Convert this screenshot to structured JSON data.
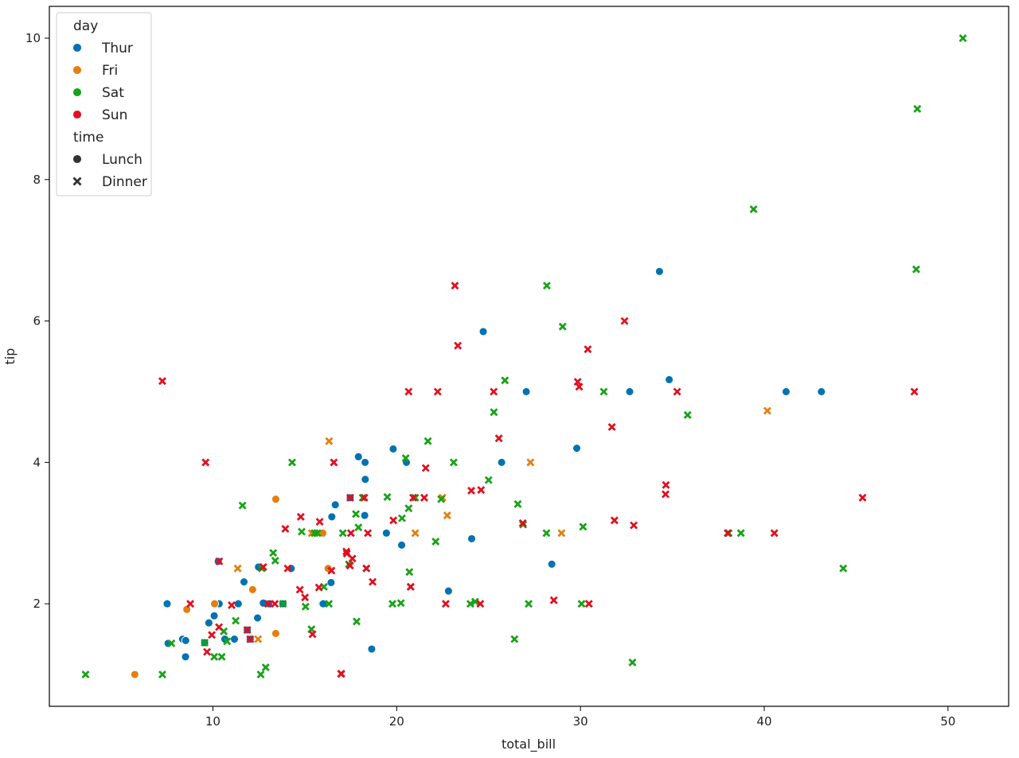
{
  "chart_data": {
    "type": "scatter",
    "xlabel": "total_bill",
    "ylabel": "tip",
    "xlim": [
      1.1,
      53.3
    ],
    "ylim": [
      0.55,
      10.45
    ],
    "xticks": [
      10,
      20,
      30,
      40,
      50
    ],
    "yticks": [
      2,
      4,
      6,
      8,
      10
    ],
    "grid": false,
    "legend": {
      "placement": "top-left",
      "hue_title": "day",
      "style_title": "time",
      "hue_entries": [
        {
          "label": "Thur",
          "color": "#1f77b4"
        },
        {
          "label": "Fri",
          "color": "#ff7f0e"
        },
        {
          "label": "Sat",
          "color": "#2ca02c"
        },
        {
          "label": "Sun",
          "color": "#d62728"
        }
      ],
      "style_entries": [
        {
          "label": "Lunch",
          "marker": "circle"
        },
        {
          "label": "Dinner",
          "marker": "x"
        }
      ]
    },
    "colors": {
      "Thur": "#0072B2",
      "Fri": "#E67E0E",
      "Sat": "#17A317",
      "Sun": "#E01020"
    },
    "series": [
      {
        "day": "Thur",
        "time": "Lunch",
        "points": [
          [
            7.51,
            2.0
          ],
          [
            7.56,
            1.44
          ],
          [
            8.35,
            1.5
          ],
          [
            8.51,
            1.25
          ],
          [
            8.52,
            1.48
          ],
          [
            9.78,
            1.73
          ],
          [
            10.07,
            1.83
          ],
          [
            10.34,
            2.0
          ],
          [
            10.65,
            1.5
          ],
          [
            11.17,
            1.5
          ],
          [
            11.38,
            2.0
          ],
          [
            11.87,
            1.63
          ],
          [
            12.03,
            1.5
          ],
          [
            12.43,
            1.8
          ],
          [
            12.48,
            2.52
          ],
          [
            12.9,
            2.0
          ],
          [
            13.0,
            2.0
          ],
          [
            13.03,
            2.0
          ],
          [
            13.42,
            1.58
          ],
          [
            14.26,
            2.5
          ],
          [
            15.95,
            2.0
          ],
          [
            16.47,
            3.23
          ],
          [
            16.66,
            3.4
          ],
          [
            16.0,
            2.0
          ],
          [
            16.29,
            2.5
          ],
          [
            16.43,
            2.3
          ],
          [
            17.92,
            4.08
          ],
          [
            18.29,
            3.76
          ],
          [
            18.28,
            4.0
          ],
          [
            18.64,
            1.36
          ],
          [
            19.44,
            3.0
          ],
          [
            19.81,
            4.19
          ],
          [
            20.27,
            2.83
          ],
          [
            20.53,
            4.0
          ],
          [
            22.82,
            2.18
          ],
          [
            24.08,
            2.92
          ],
          [
            24.71,
            5.85
          ],
          [
            25.71,
            4.0
          ],
          [
            27.05,
            5.0
          ],
          [
            28.44,
            2.56
          ],
          [
            29.8,
            4.2
          ],
          [
            32.68,
            5.0
          ],
          [
            34.83,
            5.17
          ],
          [
            41.19,
            5.0
          ],
          [
            43.11,
            5.0
          ],
          [
            34.3,
            6.7
          ],
          [
            17.47,
            3.5
          ],
          [
            13.81,
            2.0
          ],
          [
            11.69,
            2.31
          ],
          [
            10.29,
            2.6
          ],
          [
            12.74,
            2.01
          ],
          [
            18.26,
            3.25
          ],
          [
            9.55,
            1.45
          ]
        ]
      },
      {
        "day": "Fri",
        "time": "Lunch",
        "points": [
          [
            5.75,
            1.0
          ],
          [
            8.58,
            1.92
          ],
          [
            10.09,
            2.0
          ],
          [
            12.16,
            2.2
          ],
          [
            13.42,
            3.48
          ],
          [
            13.42,
            1.58
          ],
          [
            15.98,
            3.0
          ],
          [
            16.27,
            2.5
          ]
        ]
      },
      {
        "day": "Fri",
        "time": "Dinner",
        "points": [
          [
            12.46,
            1.5
          ],
          [
            11.35,
            2.5
          ],
          [
            16.32,
            4.3
          ],
          [
            22.75,
            3.25
          ],
          [
            40.17,
            4.73
          ],
          [
            27.28,
            4.0
          ],
          [
            12.03,
            1.5
          ],
          [
            21.01,
            3.0
          ],
          [
            15.38,
            3.0
          ],
          [
            28.97,
            3.0
          ],
          [
            22.49,
            3.5
          ]
        ]
      },
      {
        "day": "Sat",
        "time": "Dinner",
        "points": [
          [
            3.07,
            1.0
          ],
          [
            7.25,
            1.0
          ],
          [
            7.74,
            1.44
          ],
          [
            9.55,
            1.45
          ],
          [
            10.07,
            1.25
          ],
          [
            10.59,
            1.61
          ],
          [
            10.48,
            1.25
          ],
          [
            11.24,
            1.76
          ],
          [
            11.61,
            3.39
          ],
          [
            12.6,
            1.0
          ],
          [
            12.87,
            1.1
          ],
          [
            13.28,
            2.72
          ],
          [
            13.81,
            2.0
          ],
          [
            14.31,
            4.0
          ],
          [
            15.04,
            1.96
          ],
          [
            15.36,
            1.64
          ],
          [
            15.69,
            3.0
          ],
          [
            16.04,
            2.24
          ],
          [
            17.07,
            3.0
          ],
          [
            17.78,
            3.27
          ],
          [
            17.82,
            1.75
          ],
          [
            18.15,
            3.5
          ],
          [
            18.35,
            2.5
          ],
          [
            19.49,
            3.51
          ],
          [
            20.29,
            3.21
          ],
          [
            20.49,
            4.06
          ],
          [
            20.69,
            2.45
          ],
          [
            21.01,
            3.5
          ],
          [
            22.42,
            3.48
          ],
          [
            23.1,
            4.0
          ],
          [
            24.01,
            2.0
          ],
          [
            25.0,
            3.75
          ],
          [
            26.41,
            1.5
          ],
          [
            28.15,
            3.0
          ],
          [
            28.17,
            6.5
          ],
          [
            29.03,
            5.92
          ],
          [
            30.06,
            2.0
          ],
          [
            31.27,
            5.0
          ],
          [
            32.83,
            1.17
          ],
          [
            35.83,
            4.67
          ],
          [
            38.73,
            3.0
          ],
          [
            39.42,
            7.58
          ],
          [
            44.3,
            2.5
          ],
          [
            48.27,
            6.73
          ],
          [
            48.33,
            9.0
          ],
          [
            50.81,
            10.0
          ],
          [
            20.65,
            3.35
          ],
          [
            21.7,
            4.3
          ],
          [
            25.29,
            4.71
          ],
          [
            26.88,
            3.12
          ],
          [
            10.77,
            1.47
          ],
          [
            15.53,
            3.0
          ],
          [
            13.39,
            2.61
          ],
          [
            20.76,
            2.24
          ],
          [
            16.31,
            2.0
          ],
          [
            17.92,
            3.08
          ],
          [
            24.27,
            2.03
          ],
          [
            12.66,
            2.5
          ],
          [
            26.59,
            3.41
          ],
          [
            38.07,
            3.0
          ],
          [
            19.77,
            2.0
          ],
          [
            20.23,
            2.01
          ],
          [
            25.89,
            5.16
          ],
          [
            30.14,
            3.09
          ],
          [
            22.12,
            2.88
          ],
          [
            27.18,
            2.0
          ],
          [
            14.83,
            3.02
          ],
          [
            17.4,
            2.56
          ]
        ]
      },
      {
        "day": "Sun",
        "time": "Dinner",
        "points": [
          [
            7.25,
            5.15
          ],
          [
            8.77,
            2.0
          ],
          [
            9.68,
            1.32
          ],
          [
            9.6,
            4.0
          ],
          [
            9.94,
            1.56
          ],
          [
            10.33,
            1.67
          ],
          [
            10.34,
            2.6
          ],
          [
            11.02,
            1.98
          ],
          [
            12.74,
            2.52
          ],
          [
            13.37,
            2.0
          ],
          [
            13.94,
            3.06
          ],
          [
            14.07,
            2.5
          ],
          [
            14.78,
            3.23
          ],
          [
            15.01,
            2.09
          ],
          [
            15.42,
            1.57
          ],
          [
            15.77,
            2.23
          ],
          [
            16.45,
            2.47
          ],
          [
            16.97,
            1.01
          ],
          [
            17.29,
            2.71
          ],
          [
            17.46,
            2.54
          ],
          [
            17.51,
            3.0
          ],
          [
            17.59,
            2.64
          ],
          [
            18.43,
            3.0
          ],
          [
            18.24,
            3.5
          ],
          [
            19.82,
            3.18
          ],
          [
            20.65,
            5.0
          ],
          [
            20.9,
            3.5
          ],
          [
            21.5,
            3.5
          ],
          [
            22.23,
            5.0
          ],
          [
            23.33,
            5.65
          ],
          [
            23.17,
            6.5
          ],
          [
            24.55,
            2.0
          ],
          [
            24.59,
            3.61
          ],
          [
            25.56,
            4.34
          ],
          [
            29.85,
            5.14
          ],
          [
            29.93,
            5.07
          ],
          [
            30.4,
            5.6
          ],
          [
            31.71,
            4.5
          ],
          [
            32.4,
            6.0
          ],
          [
            34.63,
            3.55
          ],
          [
            34.65,
            3.68
          ],
          [
            35.26,
            5.0
          ],
          [
            38.01,
            3.0
          ],
          [
            40.55,
            3.0
          ],
          [
            45.35,
            3.5
          ],
          [
            48.17,
            5.0
          ],
          [
            16.58,
            4.0
          ],
          [
            13.0,
            2.0
          ],
          [
            16.99,
            1.01
          ],
          [
            14.73,
            2.2
          ],
          [
            21.58,
            3.92
          ],
          [
            24.06,
            3.6
          ],
          [
            26.86,
            3.14
          ],
          [
            25.28,
            5.0
          ],
          [
            31.85,
            3.18
          ],
          [
            32.9,
            3.11
          ],
          [
            30.46,
            2.0
          ],
          [
            28.55,
            2.05
          ],
          [
            18.35,
            2.5
          ],
          [
            17.26,
            2.74
          ],
          [
            20.76,
            2.24
          ],
          [
            22.67,
            2.0
          ],
          [
            17.47,
            3.5
          ],
          [
            11.87,
            1.63
          ],
          [
            12.03,
            1.5
          ],
          [
            18.69,
            2.31
          ],
          [
            15.81,
            3.16
          ]
        ]
      }
    ]
  }
}
